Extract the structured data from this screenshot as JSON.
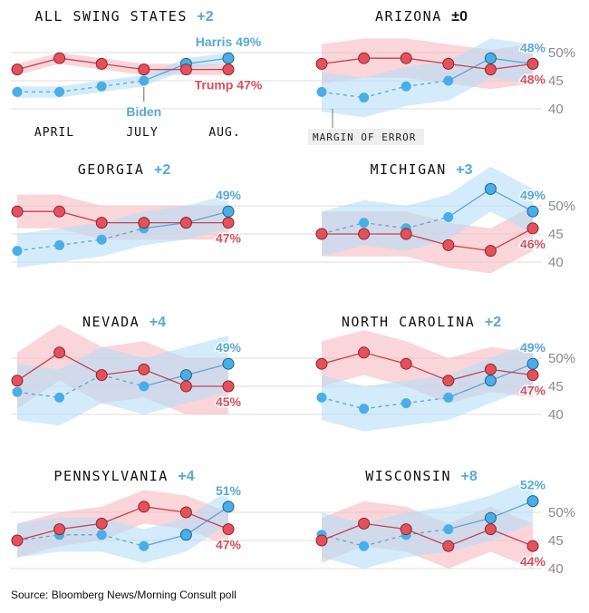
{
  "source": "Source: Bloomberg News/Morning Consult poll",
  "colors": {
    "trump": "#e5505d",
    "trump_line": "#c8404f",
    "trump_band": "#f7b9c0",
    "dem": "#4aaee6",
    "dem_line": "#5aa6d6",
    "dem_band": "#b5def6",
    "dem_label": "#58a8d8",
    "trump_label": "#d6505c",
    "grid": "#dddddd"
  },
  "x_ticks": [
    "APRIL",
    "JULY",
    "AUG."
  ],
  "y_ticks": [
    "50%",
    "45",
    "40"
  ],
  "annotations": {
    "biden": "Biden",
    "margin_of_error": "MARGIN OF ERROR"
  },
  "chart_data": [
    {
      "type": "line",
      "title": "ALL SWING STATES",
      "lead": "+2",
      "lead_party": "dem",
      "trump": [
        47,
        49,
        48,
        47,
        47,
        47
      ],
      "dem": [
        43,
        43,
        44,
        45,
        48,
        49
      ],
      "moe": 1,
      "dem_label": "Harris 49%",
      "trump_label": "Trump 47%",
      "ylim": [
        40,
        50
      ]
    },
    {
      "type": "line",
      "title": "ARIZONA",
      "lead": "±0",
      "lead_party": "none",
      "trump": [
        48,
        49,
        49,
        48,
        47,
        48
      ],
      "dem": [
        43,
        42,
        44,
        45,
        49,
        48
      ],
      "moe": 3.5,
      "dem_label": "48%",
      "trump_label": "48%",
      "ylim": [
        40,
        50
      ]
    },
    {
      "type": "line",
      "title": "GEORGIA",
      "lead": "+2",
      "lead_party": "dem",
      "trump": [
        49,
        49,
        47,
        47,
        47,
        47
      ],
      "dem": [
        42,
        43,
        44,
        46,
        47,
        49
      ],
      "moe": 3,
      "dem_label": "49%",
      "trump_label": "47%",
      "ylim": [
        40,
        50
      ]
    },
    {
      "type": "line",
      "title": "MICHIGAN",
      "lead": "+3",
      "lead_party": "dem",
      "trump": [
        45,
        45,
        45,
        43,
        42,
        46
      ],
      "dem": [
        45,
        47,
        46,
        48,
        53,
        49
      ],
      "moe": 4,
      "dem_label": "49%",
      "trump_label": "46%",
      "ylim": [
        40,
        50
      ]
    },
    {
      "type": "line",
      "title": "NEVADA",
      "lead": "+4",
      "lead_party": "dem",
      "trump": [
        46,
        51,
        47,
        48,
        45,
        45
      ],
      "dem": [
        44,
        43,
        47,
        45,
        47,
        49
      ],
      "moe": 5,
      "dem_label": "49%",
      "trump_label": "45%",
      "ylim": [
        40,
        50
      ]
    },
    {
      "type": "line",
      "title": "NORTH CAROLINA",
      "lead": "+2",
      "lead_party": "dem",
      "trump": [
        49,
        51,
        49,
        46,
        48,
        47
      ],
      "dem": [
        43,
        41,
        42,
        43,
        46,
        49
      ],
      "moe": 4,
      "dem_label": "49%",
      "trump_label": "47%",
      "ylim": [
        40,
        50
      ]
    },
    {
      "type": "line",
      "title": "PENNSYLVANIA",
      "lead": "+4",
      "lead_party": "dem",
      "trump": [
        45,
        47,
        48,
        51,
        50,
        47
      ],
      "dem": [
        45,
        46,
        46,
        44,
        46,
        51
      ],
      "moe": 3,
      "dem_label": "51%",
      "trump_label": "47%",
      "ylim": [
        40,
        50
      ]
    },
    {
      "type": "line",
      "title": "WISCONSIN",
      "lead": "+8",
      "lead_party": "dem",
      "trump": [
        45,
        48,
        47,
        44,
        47,
        44
      ],
      "dem": [
        46,
        44,
        46,
        47,
        49,
        52
      ],
      "moe": 4,
      "dem_label": "52%",
      "trump_label": "44%",
      "ylim": [
        40,
        50
      ]
    }
  ]
}
